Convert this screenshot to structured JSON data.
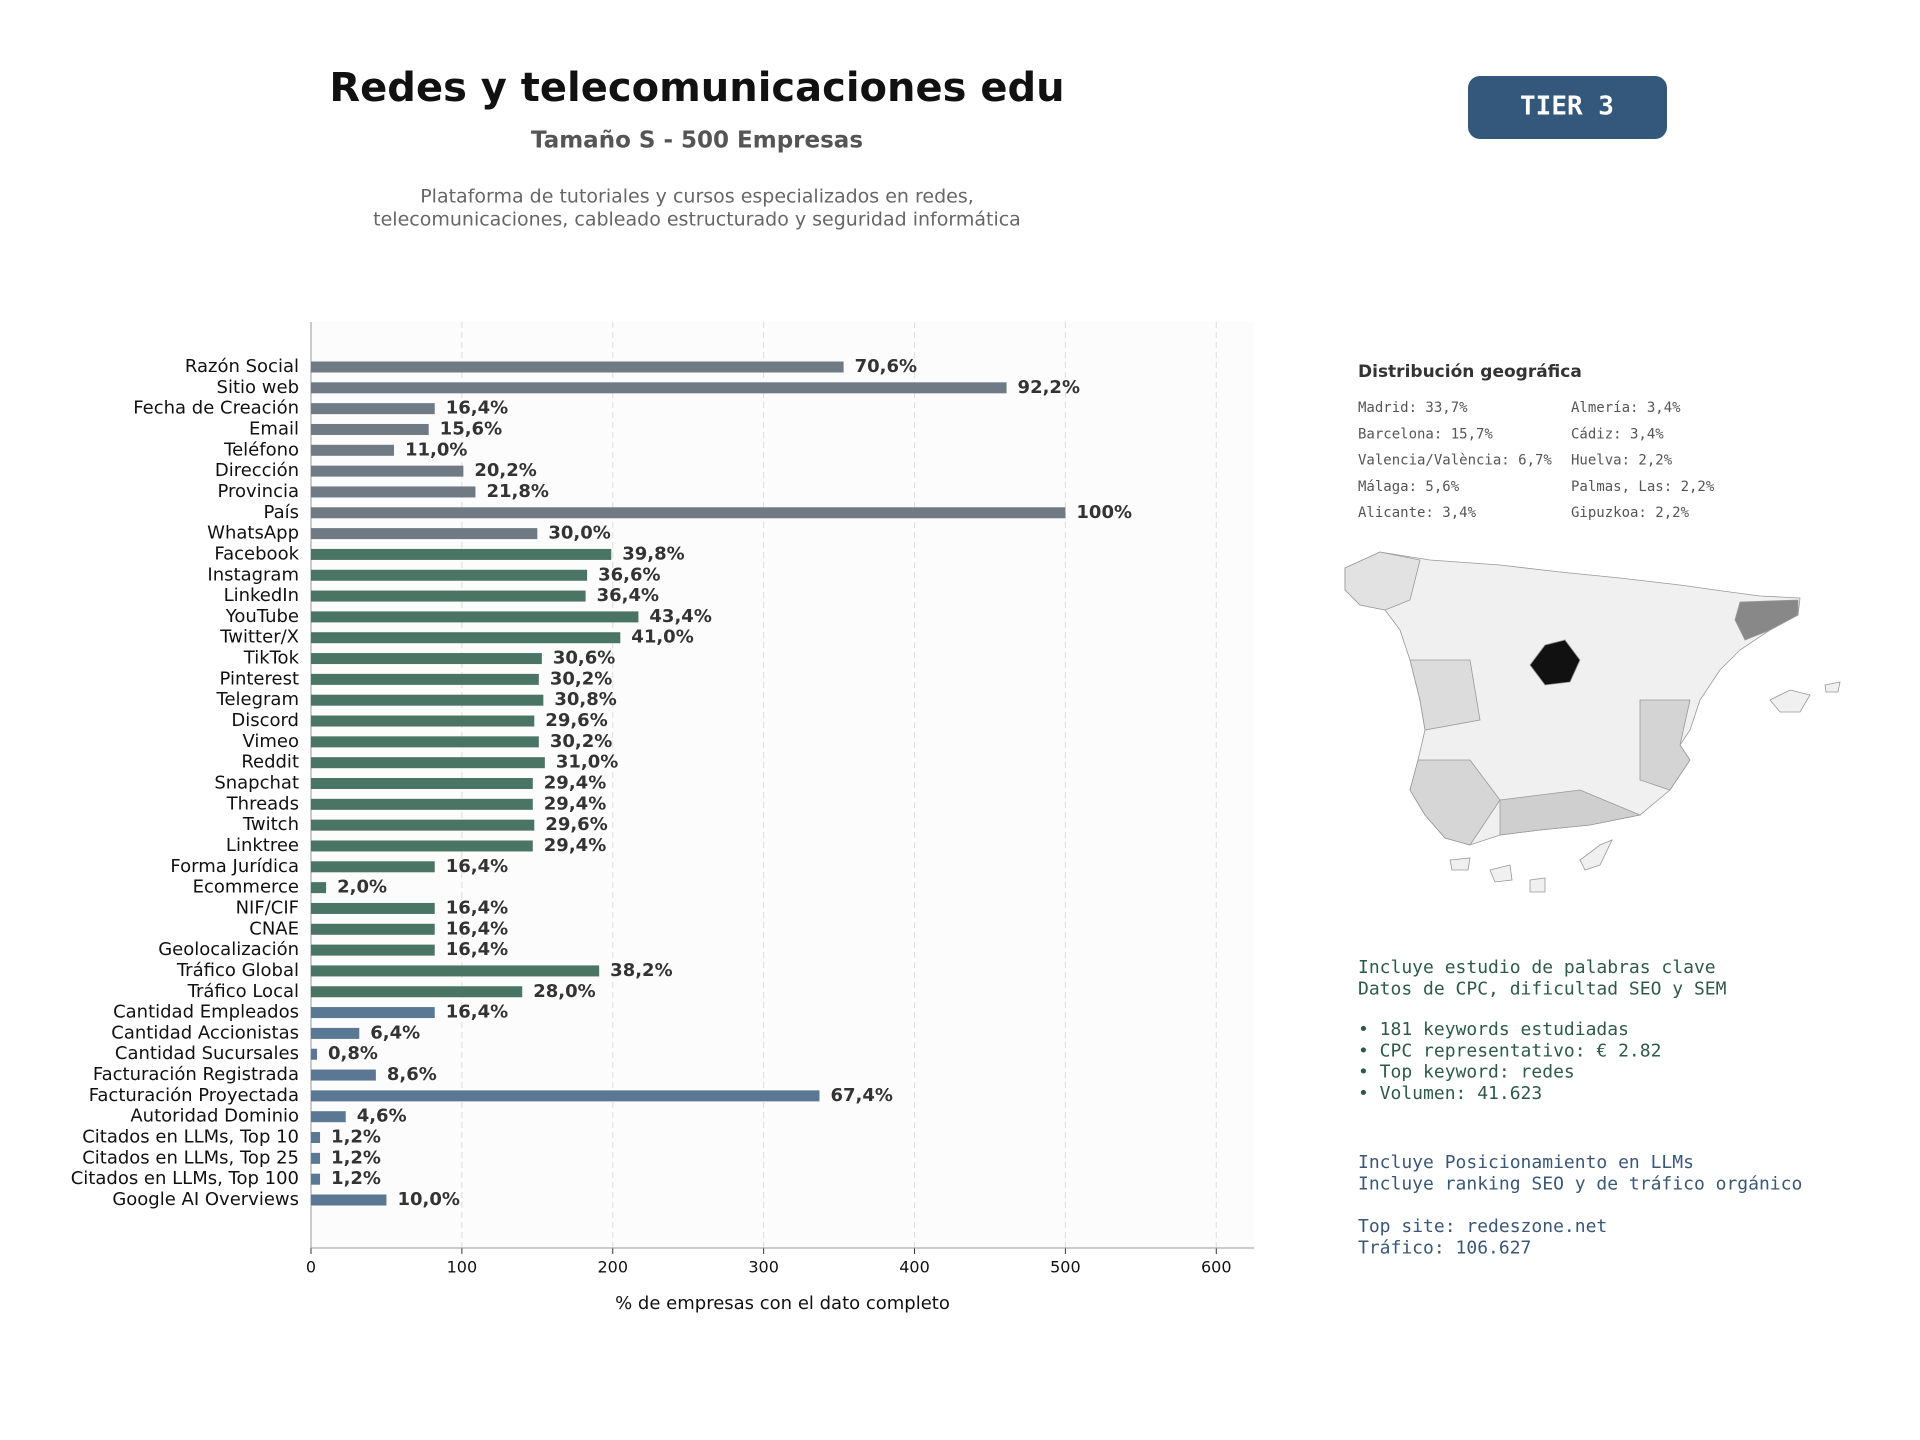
{
  "header": {
    "title": "Redes y telecomunicaciones edu",
    "subtitle": "Tamaño S - 500 Empresas",
    "description": [
      "Plataforma de tutoriales y cursos especializados en redes,",
      "telecomunicaciones, cableado estructurado y seguridad informática"
    ],
    "badge": "TIER 3"
  },
  "chart_data": {
    "type": "hbar",
    "xlabel": "% de empresas con el dato completo",
    "categories": [
      "Razón Social",
      "Sitio web",
      "Fecha de Creación",
      "Email",
      "Teléfono",
      "Dirección",
      "Provincia",
      "País",
      "WhatsApp",
      "Facebook",
      "Instagram",
      "LinkedIn",
      "YouTube",
      "Twitter/X",
      "TikTok",
      "Pinterest",
      "Telegram",
      "Discord",
      "Vimeo",
      "Reddit",
      "Snapchat",
      "Threads",
      "Twitch",
      "Linktree",
      "Forma Jurídica",
      "Ecommerce",
      "NIF/CIF",
      "CNAE",
      "Geolocalización",
      "Tráfico Global",
      "Tráfico Local",
      "Cantidad Empleados",
      "Cantidad Accionistas",
      "Cantidad Sucursales",
      "Facturación Registrada",
      "Facturación Proyectada",
      "Autoridad Dominio",
      "Citados en LLMs, Top 10",
      "Citados en LLMs, Top 25",
      "Citados en LLMs, Top 100",
      "Google AI Overviews"
    ],
    "values": [
      353,
      461,
      82,
      78,
      55,
      101,
      109,
      500,
      150,
      199,
      183,
      182,
      217,
      205,
      153,
      151,
      154,
      148,
      151,
      155,
      147,
      147,
      148,
      147,
      82,
      10,
      82,
      82,
      82,
      191,
      140,
      82,
      32,
      4,
      43,
      337,
      23,
      6,
      6,
      6,
      50
    ],
    "value_labels": [
      "70,6%",
      "92,2%",
      "16,4%",
      "15,6%",
      "11,0%",
      "20,2%",
      "21,8%",
      "100%",
      "30,0%",
      "39,8%",
      "36,6%",
      "36,4%",
      "43,4%",
      "41,0%",
      "30,6%",
      "30,2%",
      "30,8%",
      "29,6%",
      "30,2%",
      "31,0%",
      "29,4%",
      "29,4%",
      "29,6%",
      "29,4%",
      "16,4%",
      "2,0%",
      "16,4%",
      "16,4%",
      "16,4%",
      "38,2%",
      "28,0%",
      "16,4%",
      "6,4%",
      "0,8%",
      "8,6%",
      "67,4%",
      "4,6%",
      "1,2%",
      "1,2%",
      "1,2%",
      "10,0%"
    ],
    "colors": [
      "#6f7a84",
      "#6f7a84",
      "#6f7a84",
      "#6f7a84",
      "#6f7a84",
      "#6f7a84",
      "#6f7a84",
      "#6f7a84",
      "#6f7a84",
      "#4a7565",
      "#4a7565",
      "#4a7565",
      "#4a7565",
      "#4a7565",
      "#4a7565",
      "#4a7565",
      "#4a7565",
      "#4a7565",
      "#4a7565",
      "#4a7565",
      "#4a7565",
      "#4a7565",
      "#4a7565",
      "#4a7565",
      "#4a7565",
      "#4a7565",
      "#4a7565",
      "#4a7565",
      "#4a7565",
      "#4a7565",
      "#4a7565",
      "#5a7793",
      "#5a7793",
      "#5a7793",
      "#5a7793",
      "#5a7793",
      "#5a7793",
      "#5a7793",
      "#5a7793",
      "#5a7793",
      "#5a7793"
    ],
    "xlim": [
      0,
      625
    ],
    "xticks": [
      0,
      100,
      200,
      300,
      400,
      500,
      600
    ],
    "grid": true
  },
  "geo": {
    "title": "Distribución geográfica",
    "items": [
      "Madrid: 33,7%",
      "Barcelona: 15,7%",
      "Valencia/València: 6,7%",
      "Málaga: 5,6%",
      "Alicante: 3,4%",
      "Almería: 3,4%",
      "Cádiz: 3,4%",
      "Huelva: 2,2%",
      "Palmas, Las: 2,2%",
      "Gipuzkoa: 2,2%"
    ]
  },
  "notes": [
    [
      "Incluye estudio de palabras clave",
      "Datos de CPC, dificultad SEO y SEM"
    ],
    [
      "• 181 keywords estudiadas",
      "• CPC representativo: € 2.82",
      "• Top keyword: redes",
      "• Volumen: 41.623"
    ],
    [
      "Incluye Posicionamiento en LLMs",
      "Incluye ranking SEO y de tráfico orgánico"
    ],
    [
      "Top site: redeszone.net",
      "Tráfico: 106.627"
    ]
  ]
}
